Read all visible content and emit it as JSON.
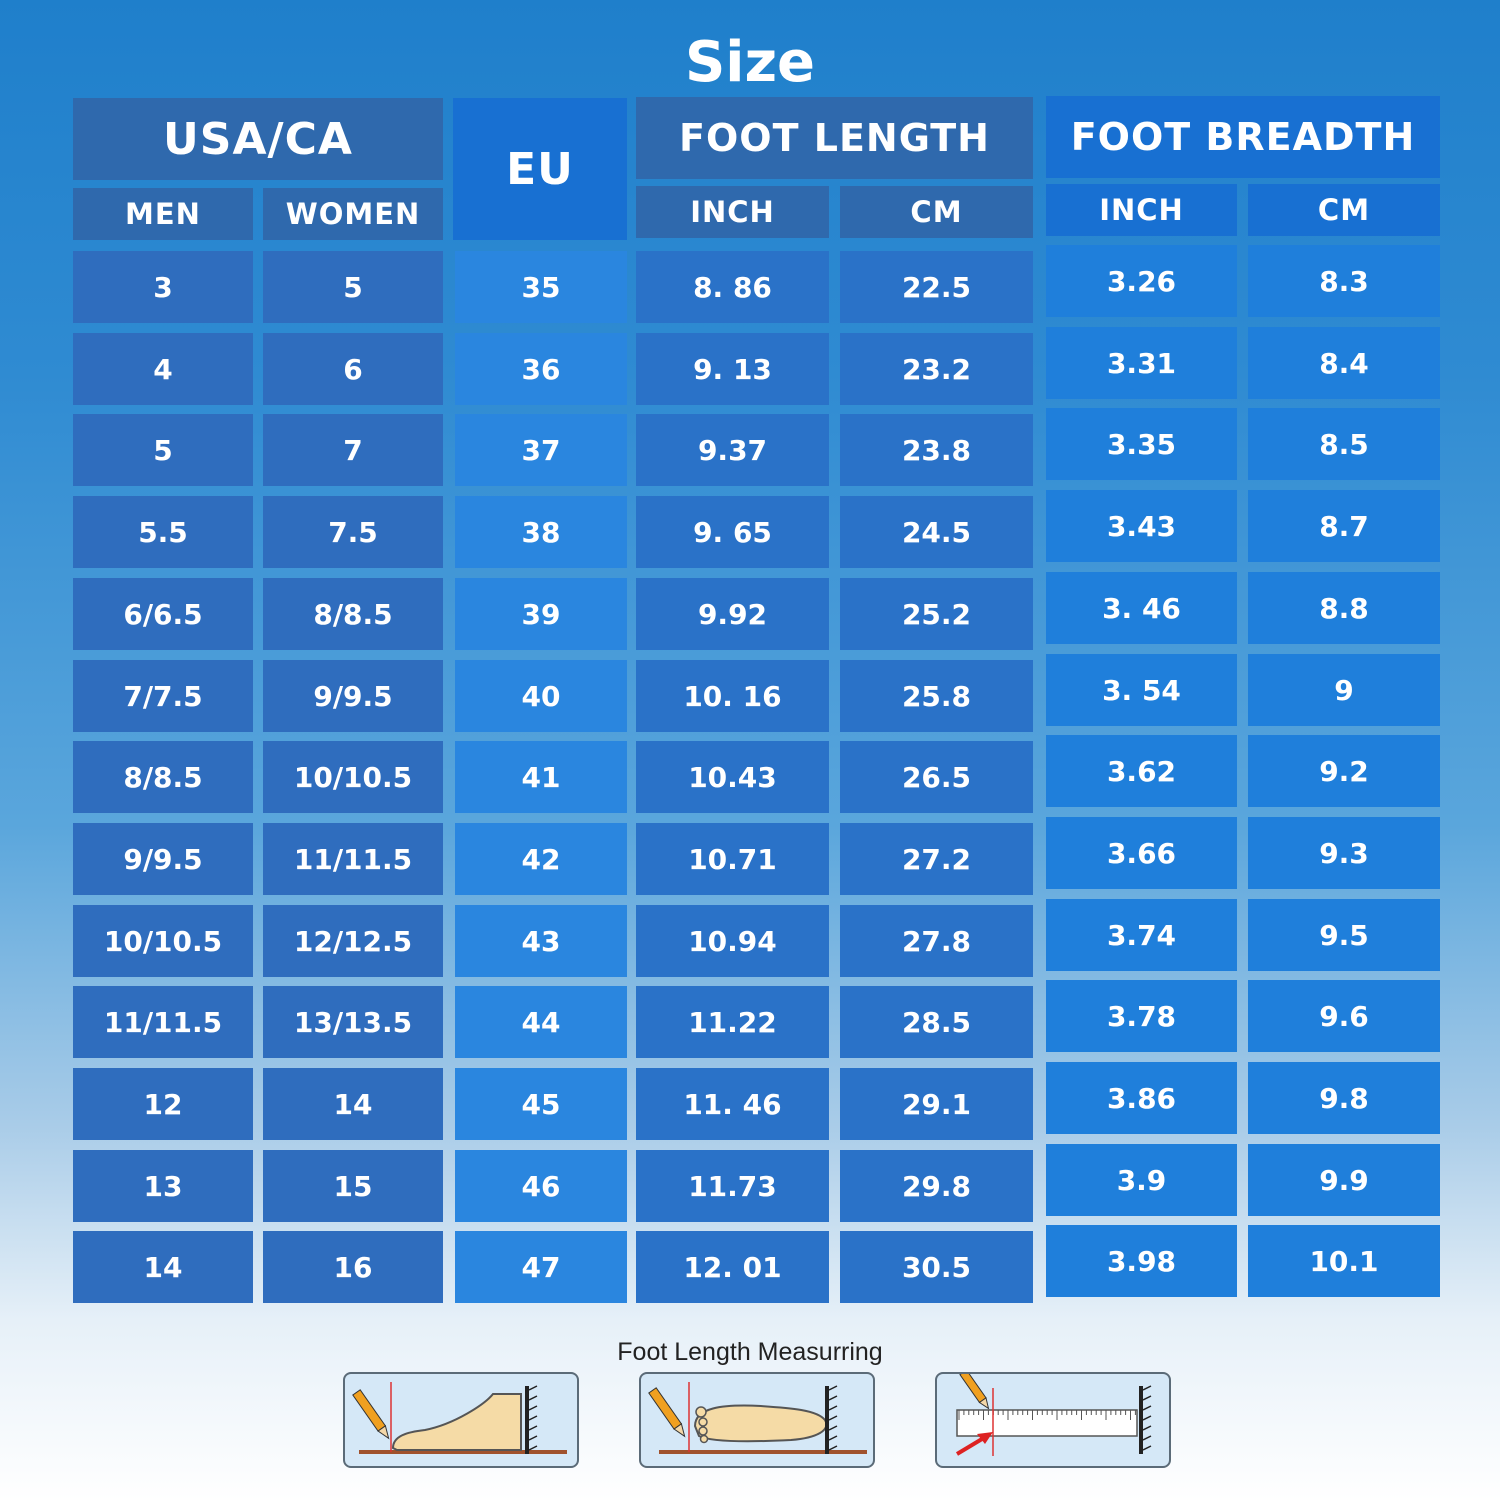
{
  "title": "Size",
  "headers": {
    "usa_ca": "USA/CA",
    "men": "MEN",
    "women": "WOMEN",
    "eu": "EU",
    "foot_length": "FOOT LENGTH",
    "foot_breadth": "FOOT BREADTH",
    "inch": "INCH",
    "cm": "CM"
  },
  "rows": [
    {
      "men": "3",
      "women": "5",
      "eu": "35",
      "fl_inch": "8. 86",
      "fl_cm": "22.5",
      "fb_inch": "3.26",
      "fb_cm": "8.3"
    },
    {
      "men": "4",
      "women": "6",
      "eu": "36",
      "fl_inch": "9. 13",
      "fl_cm": "23.2",
      "fb_inch": "3.31",
      "fb_cm": "8.4"
    },
    {
      "men": "5",
      "women": "7",
      "eu": "37",
      "fl_inch": "9.37",
      "fl_cm": "23.8",
      "fb_inch": "3.35",
      "fb_cm": "8.5"
    },
    {
      "men": "5.5",
      "women": "7.5",
      "eu": "38",
      "fl_inch": "9. 65",
      "fl_cm": "24.5",
      "fb_inch": "3.43",
      "fb_cm": "8.7"
    },
    {
      "men": "6/6.5",
      "women": "8/8.5",
      "eu": "39",
      "fl_inch": "9.92",
      "fl_cm": "25.2",
      "fb_inch": "3. 46",
      "fb_cm": "8.8"
    },
    {
      "men": "7/7.5",
      "women": "9/9.5",
      "eu": "40",
      "fl_inch": "10. 16",
      "fl_cm": "25.8",
      "fb_inch": "3. 54",
      "fb_cm": "9"
    },
    {
      "men": "8/8.5",
      "women": "10/10.5",
      "eu": "41",
      "fl_inch": "10.43",
      "fl_cm": "26.5",
      "fb_inch": "3.62",
      "fb_cm": "9.2"
    },
    {
      "men": "9/9.5",
      "women": "11/11.5",
      "eu": "42",
      "fl_inch": "10.71",
      "fl_cm": "27.2",
      "fb_inch": "3.66",
      "fb_cm": "9.3"
    },
    {
      "men": "10/10.5",
      "women": "12/12.5",
      "eu": "43",
      "fl_inch": "10.94",
      "fl_cm": "27.8",
      "fb_inch": "3.74",
      "fb_cm": "9.5"
    },
    {
      "men": "11/11.5",
      "women": "13/13.5",
      "eu": "44",
      "fl_inch": "11.22",
      "fl_cm": "28.5",
      "fb_inch": "3.78",
      "fb_cm": "9.6"
    },
    {
      "men": "12",
      "women": "14",
      "eu": "45",
      "fl_inch": "11. 46",
      "fl_cm": "29.1",
      "fb_inch": "3.86",
      "fb_cm": "9.8"
    },
    {
      "men": "13",
      "women": "15",
      "eu": "46",
      "fl_inch": "11.73",
      "fl_cm": "29.8",
      "fb_inch": "3.9",
      "fb_cm": "9.9"
    },
    {
      "men": "14",
      "women": "16",
      "eu": "47",
      "fl_inch": "12. 01",
      "fl_cm": "30.5",
      "fb_inch": "3.98",
      "fb_cm": "10.1"
    }
  ],
  "measuring": {
    "caption": "Foot Length Measurring",
    "illustrations": [
      "foot-side-view",
      "foot-top-view",
      "ruler-measure"
    ]
  },
  "colors": {
    "header_dark": "#2f69ad",
    "header_blue": "#1870d2",
    "cell_dark": "#2f6dbe",
    "cell_eu": "#2a86df",
    "cell_breadth": "#1f7fdb"
  }
}
